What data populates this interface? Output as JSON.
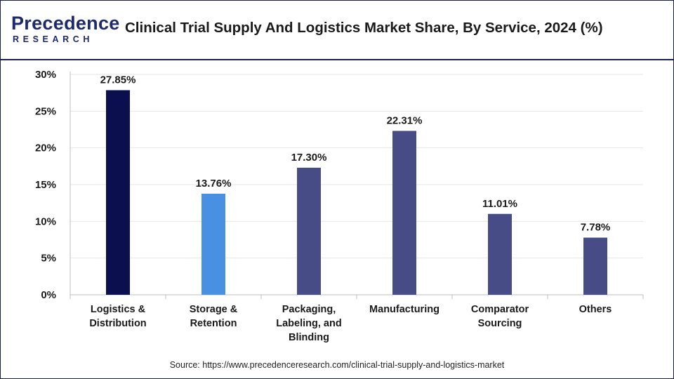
{
  "header": {
    "logo_main": "Precedence",
    "logo_sub": "RESEARCH",
    "title": "Clinical Trial Supply And Logistics Market  Share, By Service, 2024 (%)"
  },
  "footer": {
    "source": "Source: https://www.precedenceresearch.com/clinical-trial-supply-and-logistics-market"
  },
  "chart_data": {
    "type": "bar",
    "title": "Clinical Trial Supply And Logistics Market  Share, By Service, 2024 (%)",
    "xlabel": "",
    "ylabel": "",
    "ylim": [
      0,
      30
    ],
    "y_ticks": [
      "0%",
      "5%",
      "10%",
      "15%",
      "20%",
      "25%",
      "30%"
    ],
    "grid": true,
    "legend": "none",
    "categories": [
      [
        "Logistics &",
        "Distribution"
      ],
      [
        "Storage &",
        "Retention"
      ],
      [
        "Packaging,",
        "Labeling, and",
        "Blinding"
      ],
      [
        "Manufacturing"
      ],
      [
        "Comparator",
        "Sourcing"
      ],
      [
        "Others"
      ]
    ],
    "values": [
      27.85,
      13.76,
      17.3,
      22.31,
      11.01,
      7.78
    ],
    "value_labels": [
      "27.85%",
      "13.76%",
      "17.30%",
      "22.31%",
      "11.01%",
      "7.78%"
    ],
    "colors": [
      "#0b0f4d",
      "#4a90e2",
      "#474c86",
      "#474c86",
      "#474c86",
      "#474c86"
    ]
  }
}
